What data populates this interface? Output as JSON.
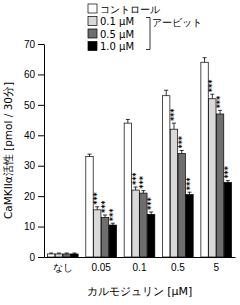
{
  "chart_data": {
    "type": "bar",
    "x_label": "カルモジュリン [μM]",
    "y_label": "CaMKIIα活性 [pmol / 30分]",
    "legend_group_label": "アービット",
    "categories": [
      "なし",
      "0.05",
      "0.1",
      "0.5",
      "5"
    ],
    "series": [
      {
        "name": "コントロール",
        "color": "#ffffff",
        "values": [
          1,
          33,
          44,
          53,
          64
        ],
        "errors": [
          0.3,
          0.8,
          1.2,
          1.8,
          1.5
        ],
        "significance": [
          null,
          null,
          null,
          null,
          null
        ]
      },
      {
        "name": "0.1 μM",
        "color": "#d9d9d9",
        "values": [
          1,
          15.5,
          22,
          42,
          52
        ],
        "errors": [
          0.3,
          1,
          1,
          2,
          1.5
        ],
        "significance": [
          null,
          "***",
          "***",
          "***",
          "***"
        ]
      },
      {
        "name": "0.5 μM",
        "color": "#6e6e6e",
        "values": [
          1,
          13,
          21,
          34,
          47
        ],
        "errors": [
          0.3,
          0.8,
          0.8,
          1,
          1.2
        ],
        "significance": [
          null,
          "***",
          "***",
          "***",
          "***"
        ]
      },
      {
        "name": "1.0 μM",
        "color": "#000000",
        "values": [
          1,
          10.5,
          14,
          20.5,
          24.5
        ],
        "errors": [
          0.3,
          0.6,
          0.8,
          0.8,
          0.6
        ],
        "significance": [
          null,
          "***",
          "***",
          "***",
          "***"
        ]
      }
    ],
    "ylim": [
      0,
      70
    ],
    "yticks": [
      0,
      10,
      20,
      30,
      40,
      50,
      60,
      70
    ],
    "legend": "top",
    "grid": false
  }
}
